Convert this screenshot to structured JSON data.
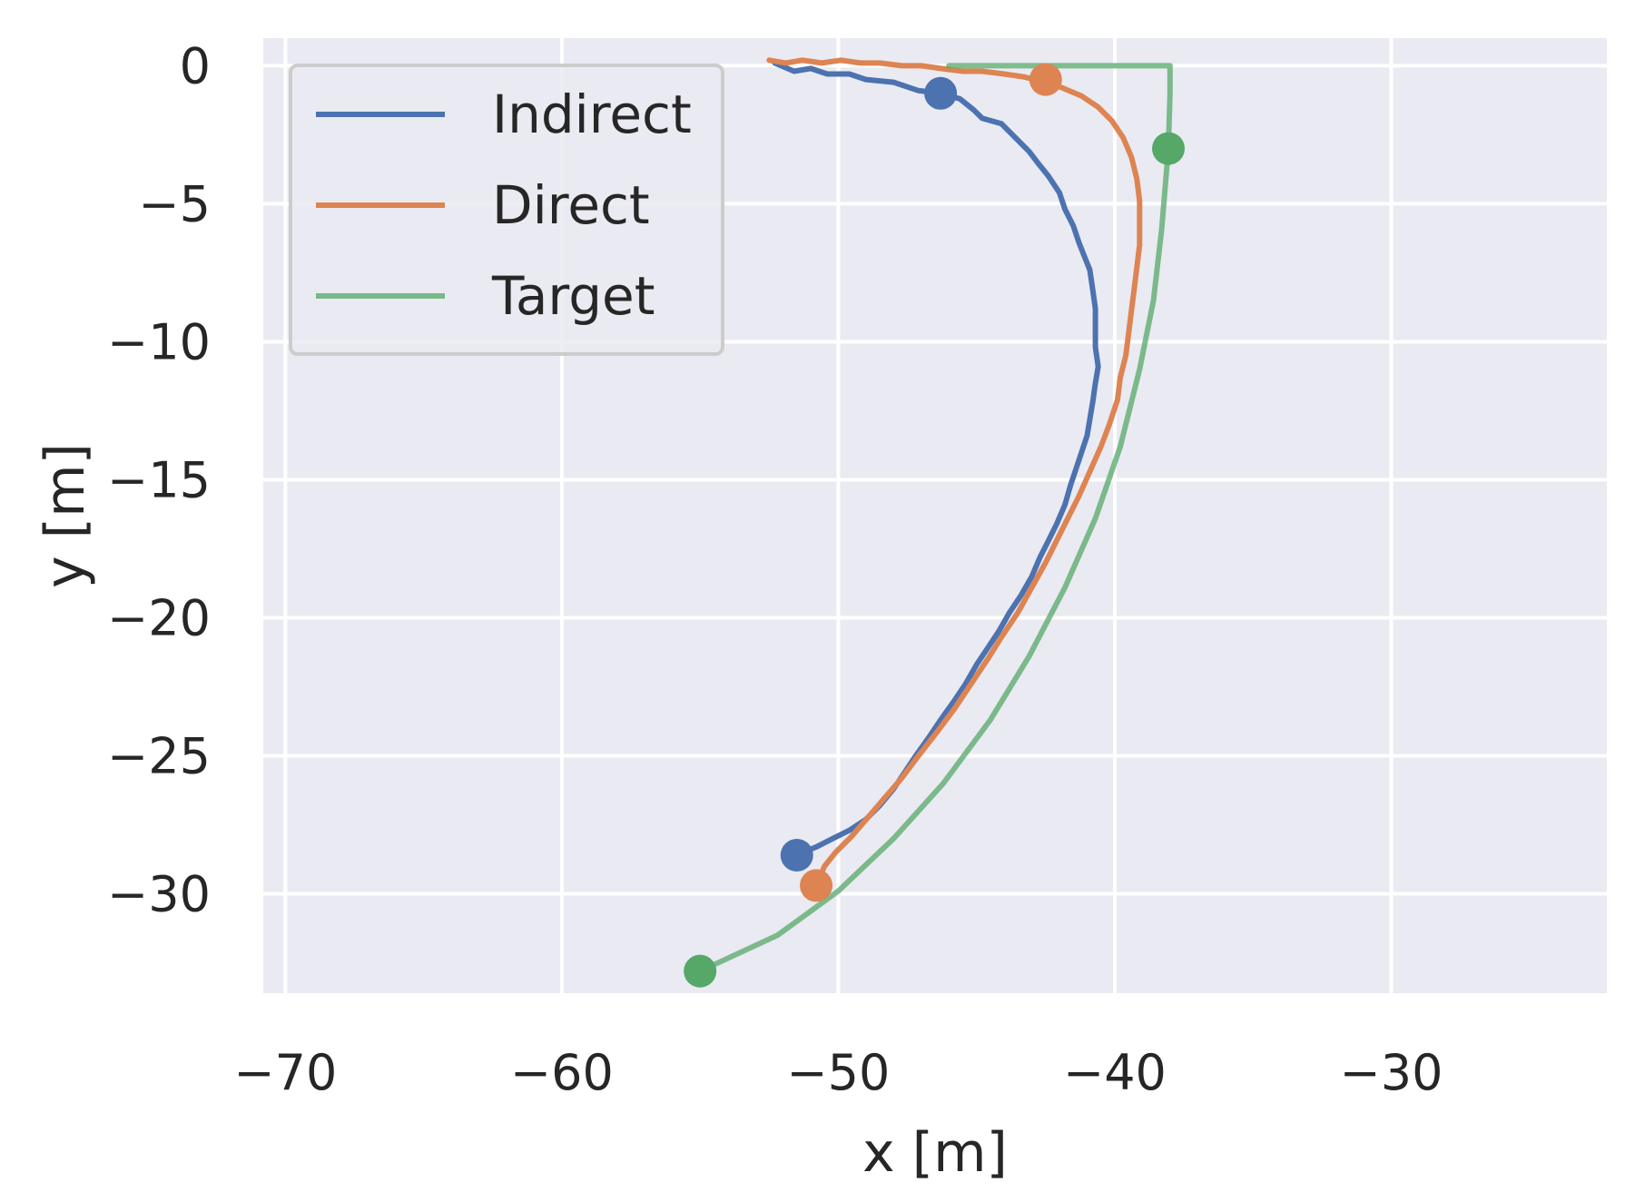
{
  "chart_data": {
    "type": "line",
    "xlabel": "x [m]",
    "ylabel": "y [m]",
    "xlim": [
      -70.8,
      -22.2
    ],
    "ylim": [
      -33.6,
      1.0
    ],
    "xticks": [
      -70,
      -60,
      -50,
      -40,
      -30
    ],
    "yticks": [
      0,
      -5,
      -10,
      -15,
      -20,
      -25,
      -30
    ],
    "xtick_labels": [
      "−70",
      "−60",
      "−50",
      "−40",
      "−30"
    ],
    "ytick_labels": [
      "0",
      "−5",
      "−10",
      "−15",
      "−20",
      "−25",
      "−30"
    ],
    "grid": true,
    "legend_position": "upper-left",
    "background": "#eaeaf2",
    "series": [
      {
        "name": "Indirect",
        "color": "#4c72b0",
        "points": [
          [
            -52.3,
            0.1
          ],
          [
            -51.6,
            -0.2
          ],
          [
            -51.0,
            -0.1
          ],
          [
            -50.4,
            -0.3
          ],
          [
            -49.6,
            -0.3
          ],
          [
            -49.0,
            -0.5
          ],
          [
            -48.0,
            -0.6
          ],
          [
            -47.1,
            -0.9
          ],
          [
            -46.3,
            -1.0
          ],
          [
            -45.6,
            -1.2
          ],
          [
            -45.1,
            -1.6
          ],
          [
            -44.8,
            -1.9
          ],
          [
            -44.1,
            -2.1
          ],
          [
            -43.6,
            -2.6
          ],
          [
            -43.1,
            -3.1
          ],
          [
            -42.8,
            -3.5
          ],
          [
            -42.4,
            -4.0
          ],
          [
            -42.0,
            -4.6
          ],
          [
            -41.8,
            -5.2
          ],
          [
            -41.5,
            -5.8
          ],
          [
            -41.3,
            -6.4
          ],
          [
            -41.1,
            -6.9
          ],
          [
            -40.9,
            -7.4
          ],
          [
            -40.8,
            -8.1
          ],
          [
            -40.7,
            -8.8
          ],
          [
            -40.7,
            -9.5
          ],
          [
            -40.7,
            -10.2
          ],
          [
            -40.6,
            -10.9
          ],
          [
            -40.7,
            -11.5
          ],
          [
            -40.8,
            -12.2
          ],
          [
            -40.9,
            -12.8
          ],
          [
            -41.0,
            -13.4
          ],
          [
            -41.2,
            -14.0
          ],
          [
            -41.4,
            -14.6
          ],
          [
            -41.6,
            -15.2
          ],
          [
            -41.8,
            -15.9
          ],
          [
            -42.1,
            -16.6
          ],
          [
            -42.4,
            -17.2
          ],
          [
            -42.7,
            -17.8
          ],
          [
            -43.0,
            -18.5
          ],
          [
            -43.4,
            -19.2
          ],
          [
            -43.8,
            -19.8
          ],
          [
            -44.2,
            -20.5
          ],
          [
            -44.6,
            -21.1
          ],
          [
            -45.0,
            -21.7
          ],
          [
            -45.4,
            -22.4
          ],
          [
            -45.8,
            -23.0
          ],
          [
            -46.3,
            -23.7
          ],
          [
            -46.7,
            -24.3
          ],
          [
            -47.2,
            -25.0
          ],
          [
            -47.6,
            -25.6
          ],
          [
            -48.0,
            -26.2
          ],
          [
            -48.5,
            -26.8
          ],
          [
            -49.0,
            -27.3
          ],
          [
            -49.6,
            -27.7
          ],
          [
            -50.2,
            -28.0
          ],
          [
            -50.8,
            -28.3
          ],
          [
            -51.5,
            -28.6
          ]
        ]
      },
      {
        "name": "Direct",
        "color": "#dd8452",
        "points": [
          [
            -52.5,
            0.2
          ],
          [
            -51.9,
            0.1
          ],
          [
            -51.3,
            0.2
          ],
          [
            -50.6,
            0.1
          ],
          [
            -49.9,
            0.2
          ],
          [
            -49.2,
            0.1
          ],
          [
            -48.5,
            0.1
          ],
          [
            -47.7,
            0.0
          ],
          [
            -47.0,
            0.0
          ],
          [
            -46.3,
            -0.1
          ],
          [
            -45.5,
            -0.2
          ],
          [
            -44.8,
            -0.2
          ],
          [
            -44.0,
            -0.3
          ],
          [
            -43.3,
            -0.4
          ],
          [
            -42.5,
            -0.6
          ],
          [
            -41.9,
            -0.8
          ],
          [
            -41.2,
            -1.1
          ],
          [
            -40.6,
            -1.5
          ],
          [
            -40.1,
            -2.0
          ],
          [
            -39.7,
            -2.6
          ],
          [
            -39.4,
            -3.3
          ],
          [
            -39.2,
            -4.1
          ],
          [
            -39.1,
            -4.9
          ],
          [
            -39.1,
            -5.7
          ],
          [
            -39.1,
            -6.5
          ],
          [
            -39.2,
            -7.3
          ],
          [
            -39.3,
            -8.1
          ],
          [
            -39.4,
            -8.9
          ],
          [
            -39.5,
            -9.7
          ],
          [
            -39.6,
            -10.5
          ],
          [
            -39.8,
            -11.3
          ],
          [
            -39.9,
            -12.1
          ],
          [
            -40.2,
            -13.0
          ],
          [
            -40.5,
            -13.8
          ],
          [
            -40.9,
            -14.7
          ],
          [
            -41.3,
            -15.6
          ],
          [
            -41.7,
            -16.4
          ],
          [
            -42.1,
            -17.2
          ],
          [
            -42.5,
            -18.0
          ],
          [
            -43.0,
            -18.9
          ],
          [
            -43.5,
            -19.8
          ],
          [
            -44.1,
            -20.7
          ],
          [
            -44.6,
            -21.5
          ],
          [
            -45.2,
            -22.4
          ],
          [
            -45.8,
            -23.3
          ],
          [
            -46.4,
            -24.1
          ],
          [
            -47.1,
            -25.0
          ],
          [
            -47.7,
            -25.8
          ],
          [
            -48.3,
            -26.5
          ],
          [
            -48.9,
            -27.2
          ],
          [
            -49.5,
            -27.9
          ],
          [
            -50.1,
            -28.5
          ],
          [
            -50.5,
            -29.0
          ],
          [
            -50.8,
            -29.7
          ]
        ]
      },
      {
        "name": "Target",
        "color": "#55a868",
        "points": [
          [
            -46.0,
            0.0
          ],
          [
            -38.0,
            0.0
          ],
          [
            -38.0,
            -1.0
          ],
          [
            -38.06,
            -3.0
          ],
          [
            -38.3,
            -5.9
          ],
          [
            -38.6,
            -8.5
          ],
          [
            -39.1,
            -11.0
          ],
          [
            -39.8,
            -13.8
          ],
          [
            -40.7,
            -16.4
          ],
          [
            -41.8,
            -18.9
          ],
          [
            -43.1,
            -21.4
          ],
          [
            -44.5,
            -23.7
          ],
          [
            -46.2,
            -26.0
          ],
          [
            -48.0,
            -28.0
          ],
          [
            -50.0,
            -29.9
          ],
          [
            -52.2,
            -31.5
          ],
          [
            -55.0,
            -32.8
          ]
        ]
      }
    ],
    "markers": [
      {
        "series": "Indirect",
        "x": -46.3,
        "y": -1.0,
        "color": "#4c72b0"
      },
      {
        "series": "Indirect",
        "x": -51.5,
        "y": -28.6,
        "color": "#4c72b0"
      },
      {
        "series": "Direct",
        "x": -42.5,
        "y": -0.5,
        "color": "#dd8452"
      },
      {
        "series": "Direct",
        "x": -50.8,
        "y": -29.7,
        "color": "#dd8452"
      },
      {
        "series": "Target",
        "x": -38.06,
        "y": -3.0,
        "color": "#55a868"
      },
      {
        "series": "Target",
        "x": -55.0,
        "y": -32.8,
        "color": "#55a868"
      }
    ]
  }
}
